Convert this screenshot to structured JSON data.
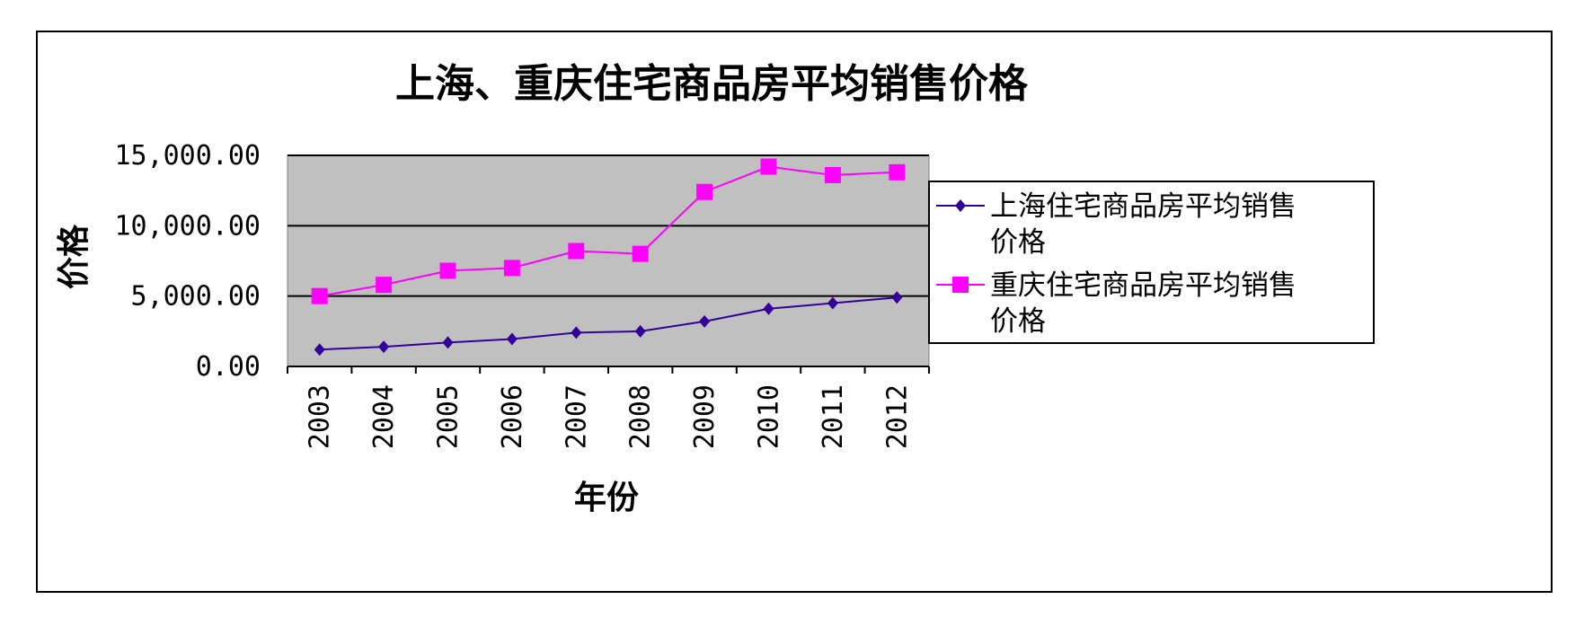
{
  "chart_data": {
    "type": "line",
    "title": "上海、重庆住宅商品房平均销售价格",
    "xlabel": "年份",
    "ylabel": "价格",
    "categories": [
      "2003",
      "2004",
      "2005",
      "2006",
      "2007",
      "2008",
      "2009",
      "2010",
      "2011",
      "2012"
    ],
    "ylim": [
      0,
      15000
    ],
    "yticks": [
      0,
      5000,
      10000,
      15000
    ],
    "ytick_labels": [
      "0.00",
      "5,000.00",
      "10,000.00",
      "15,000.00"
    ],
    "grid": "horizontal",
    "legend_position": "right",
    "series": [
      {
        "name": "上海住宅商品房平均销售价格",
        "name_lines": [
          "上海住宅商品房平均销售",
          "价格"
        ],
        "color": "#330099",
        "marker": "diamond",
        "values": [
          1200,
          1400,
          1700,
          1950,
          2400,
          2500,
          3200,
          4100,
          4500,
          4900
        ]
      },
      {
        "name": "重庆住宅商品房平均销售价格",
        "name_lines": [
          "重庆住宅商品房平均销售",
          "价格"
        ],
        "color": "#ff00ff",
        "marker": "square",
        "values": [
          5000,
          5800,
          6800,
          7000,
          8200,
          8000,
          12400,
          14200,
          13600,
          13800
        ]
      }
    ],
    "colors": {
      "plot_background": "#c0c0c0",
      "gridline": "#000000",
      "frame": "#000000"
    }
  }
}
